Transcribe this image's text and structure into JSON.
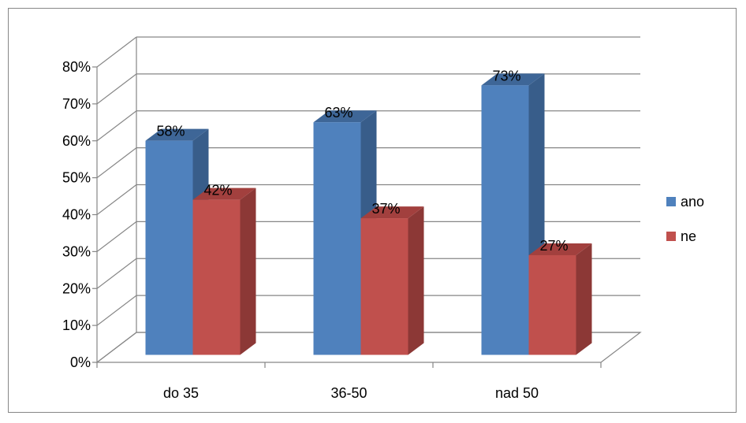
{
  "chart_data": {
    "type": "bar",
    "categories": [
      "do 35",
      "36-50",
      "nad 50"
    ],
    "series": [
      {
        "name": "ano",
        "values": [
          58,
          63,
          73
        ],
        "color": "#4F81BD",
        "side_color": "#385D8A",
        "top_color": "#3E6697",
        "labels": [
          "58%",
          "63%",
          "73%"
        ]
      },
      {
        "name": "ne",
        "values": [
          42,
          37,
          27
        ],
        "color": "#C0504D",
        "side_color": "#8C3836",
        "top_color": "#A2403E",
        "labels": [
          "42%",
          "37%",
          "27%"
        ]
      }
    ],
    "y_ticks": [
      "0%",
      "10%",
      "20%",
      "30%",
      "40%",
      "50%",
      "60%",
      "70%",
      "80%"
    ],
    "ylim": [
      0,
      80
    ],
    "title": "",
    "xlabel": "",
    "ylabel": "",
    "grid": true,
    "legend_position": "right",
    "style": "3d-clustered-column"
  }
}
